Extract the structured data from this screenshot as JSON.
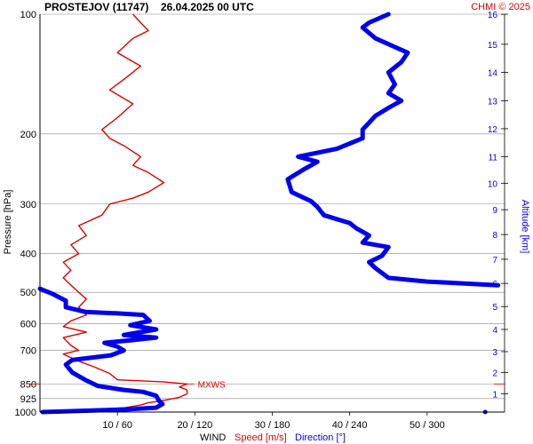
{
  "header": {
    "title": "PROSTEJOV (11747)",
    "datetime": "26.04.2025 00 UTC",
    "copyright": "CHMI © 2025"
  },
  "colors": {
    "speed": "#e00000",
    "direction": "#0000ee",
    "grid": "#888888",
    "text": "#000000"
  },
  "chart_data": {
    "type": "line",
    "y_scale": "log-pressure",
    "ylabel": "Pressure [hPa]",
    "y2label": "Altitude [km]",
    "xlabel": "WIND",
    "xlabel_speed": "Speed [m/s]",
    "xlabel_direction": "Direction [°]",
    "pressure_ticks": [
      100,
      200,
      300,
      400,
      500,
      600,
      700,
      850,
      925,
      1000
    ],
    "altitude_ticks": [
      {
        "km": 1,
        "p": 900
      },
      {
        "km": 2,
        "p": 795
      },
      {
        "km": 3,
        "p": 705
      },
      {
        "km": 4,
        "p": 620
      },
      {
        "km": 5,
        "p": 543
      },
      {
        "km": 6,
        "p": 475
      },
      {
        "km": 7,
        "p": 413
      },
      {
        "km": 8,
        "p": 358
      },
      {
        "km": 9,
        "p": 310
      },
      {
        "km": 10,
        "p": 266
      },
      {
        "km": 11,
        "p": 228
      },
      {
        "km": 12,
        "p": 194
      },
      {
        "km": 13,
        "p": 165
      },
      {
        "km": 14,
        "p": 140
      },
      {
        "km": 15,
        "p": 119
      },
      {
        "km": 16,
        "p": 100
      }
    ],
    "x_ticks": [
      "10 / 60",
      "20 / 120",
      "30 / 180",
      "40 / 240",
      "50 / 300"
    ],
    "speed_range": [
      0,
      60
    ],
    "direction_range": [
      0,
      360
    ],
    "annotation": "MXWS",
    "mxws": {
      "speed": 19,
      "p": 850
    },
    "series": [
      {
        "name": "Speed [m/s]",
        "unit": "m/s",
        "points": [
          [
            2,
            1000
          ],
          [
            3,
            995
          ],
          [
            7,
            985
          ],
          [
            11,
            975
          ],
          [
            13,
            960
          ],
          [
            14,
            948
          ],
          [
            16,
            935
          ],
          [
            18,
            918
          ],
          [
            19,
            900
          ],
          [
            19,
            880
          ],
          [
            18,
            865
          ],
          [
            19,
            850
          ],
          [
            16,
            840
          ],
          [
            10,
            830
          ],
          [
            9,
            800
          ],
          [
            7,
            770
          ],
          [
            5,
            745
          ],
          [
            3,
            715
          ],
          [
            5,
            700
          ],
          [
            4,
            680
          ],
          [
            3,
            650
          ],
          [
            6,
            630
          ],
          [
            3,
            610
          ],
          [
            4,
            590
          ],
          [
            6,
            570
          ],
          [
            5,
            545
          ],
          [
            6,
            520
          ],
          [
            5,
            500
          ],
          [
            4,
            480
          ],
          [
            3,
            460
          ],
          [
            4,
            440
          ],
          [
            3,
            420
          ],
          [
            5,
            400
          ],
          [
            4,
            380
          ],
          [
            6,
            360
          ],
          [
            5,
            340
          ],
          [
            8,
            320
          ],
          [
            9,
            300
          ],
          [
            12,
            290
          ],
          [
            14,
            280
          ],
          [
            16,
            265
          ],
          [
            14,
            250
          ],
          [
            12,
            240
          ],
          [
            13,
            228
          ],
          [
            11,
            215
          ],
          [
            9,
            205
          ],
          [
            8,
            195
          ],
          [
            10,
            182
          ],
          [
            12,
            168
          ],
          [
            9,
            155
          ],
          [
            11,
            145
          ],
          [
            13,
            135
          ],
          [
            10,
            125
          ],
          [
            12,
            115
          ],
          [
            14,
            110
          ],
          [
            13,
            105
          ],
          [
            12,
            100
          ]
        ]
      },
      {
        "name": "Direction [°]",
        "unit": "°",
        "points": [
          [
            2,
            1000
          ],
          [
            25,
            995
          ],
          [
            65,
            985
          ],
          [
            90,
            975
          ],
          [
            95,
            955
          ],
          [
            92,
            935
          ],
          [
            90,
            910
          ],
          [
            80,
            890
          ],
          [
            65,
            880
          ],
          [
            55,
            870
          ],
          [
            45,
            860
          ],
          [
            35,
            830
          ],
          [
            25,
            795
          ],
          [
            20,
            760
          ],
          [
            25,
            740
          ],
          [
            55,
            720
          ],
          [
            65,
            700
          ],
          [
            60,
            685
          ],
          [
            50,
            670
          ],
          [
            70,
            660
          ],
          [
            90,
            650
          ],
          [
            65,
            640
          ],
          [
            90,
            620
          ],
          [
            70,
            605
          ],
          [
            85,
            590
          ],
          [
            80,
            570
          ],
          [
            60,
            565
          ],
          [
            35,
            560
          ],
          [
            20,
            545
          ],
          [
            20,
            525
          ],
          [
            10,
            505
          ],
          [
            0,
            490
          ],
          [
            355,
            480
          ],
          [
            300,
            470
          ],
          [
            270,
            460
          ],
          [
            260,
            435
          ],
          [
            255,
            420
          ],
          [
            265,
            405
          ],
          [
            270,
            385
          ],
          [
            250,
            375
          ],
          [
            255,
            360
          ],
          [
            245,
            345
          ],
          [
            240,
            335
          ],
          [
            220,
            320
          ],
          [
            215,
            305
          ],
          [
            210,
            295
          ],
          [
            195,
            280
          ],
          [
            192,
            260
          ],
          [
            205,
            245
          ],
          [
            215,
            235
          ],
          [
            200,
            228
          ],
          [
            230,
            218
          ],
          [
            250,
            205
          ],
          [
            250,
            195
          ],
          [
            260,
            180
          ],
          [
            270,
            172
          ],
          [
            280,
            165
          ],
          [
            270,
            158
          ],
          [
            275,
            150
          ],
          [
            270,
            140
          ],
          [
            280,
            132
          ],
          [
            285,
            125
          ],
          [
            260,
            115
          ],
          [
            250,
            108
          ],
          [
            255,
            105
          ],
          [
            270,
            100
          ]
        ]
      }
    ],
    "extra_point": {
      "direction": 345,
      "p": 1000
    }
  }
}
